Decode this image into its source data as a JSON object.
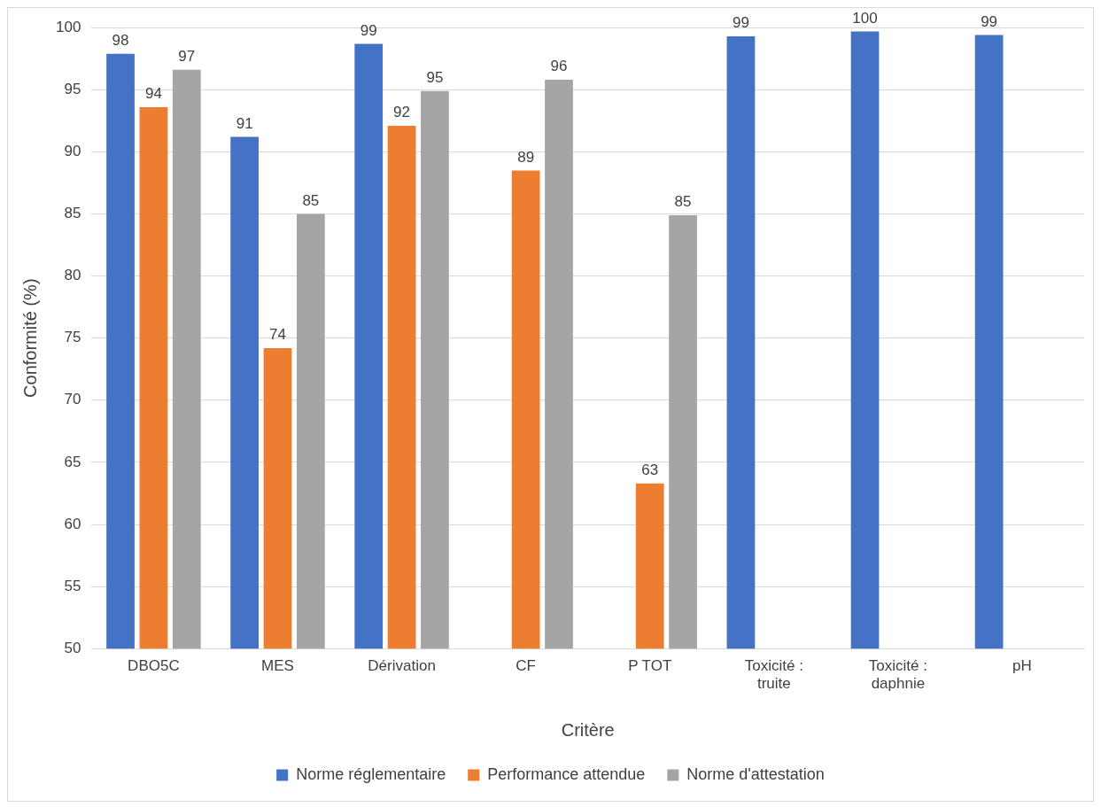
{
  "chart_data": {
    "type": "bar",
    "xlabel": "Critère",
    "ylabel": "Conformité (%)",
    "categories": [
      "DBO5C",
      "MES",
      "Dérivation",
      "CF",
      "P TOT",
      "Toxicité : truite",
      "Toxicité : daphnie",
      "pH"
    ],
    "series": [
      {
        "name": "Norme réglementaire",
        "color": "#4472c4",
        "values": [
          97.9,
          91.2,
          98.7,
          null,
          null,
          99.3,
          99.7,
          99.4
        ],
        "value_labels": [
          "98",
          "91",
          "99",
          null,
          null,
          "99",
          "100",
          "99"
        ]
      },
      {
        "name": "Performance attendue",
        "color": "#ed7d31",
        "values": [
          93.6,
          74.2,
          92.1,
          88.5,
          63.3,
          null,
          null,
          null
        ],
        "value_labels": [
          "94",
          "74",
          "92",
          "89",
          "63",
          null,
          null,
          null
        ]
      },
      {
        "name": "Norme d'attestation",
        "color": "#a5a5a5",
        "values": [
          96.6,
          85.0,
          94.9,
          95.8,
          84.9,
          null,
          null,
          null
        ],
        "value_labels": [
          "97",
          "85",
          "95",
          "96",
          "85",
          null,
          null,
          null
        ]
      }
    ],
    "ylim": [
      50,
      100
    ],
    "yticks": [
      50,
      55,
      60,
      65,
      70,
      75,
      80,
      85,
      90,
      95,
      100
    ],
    "grid": "y",
    "legend": "bottom"
  }
}
